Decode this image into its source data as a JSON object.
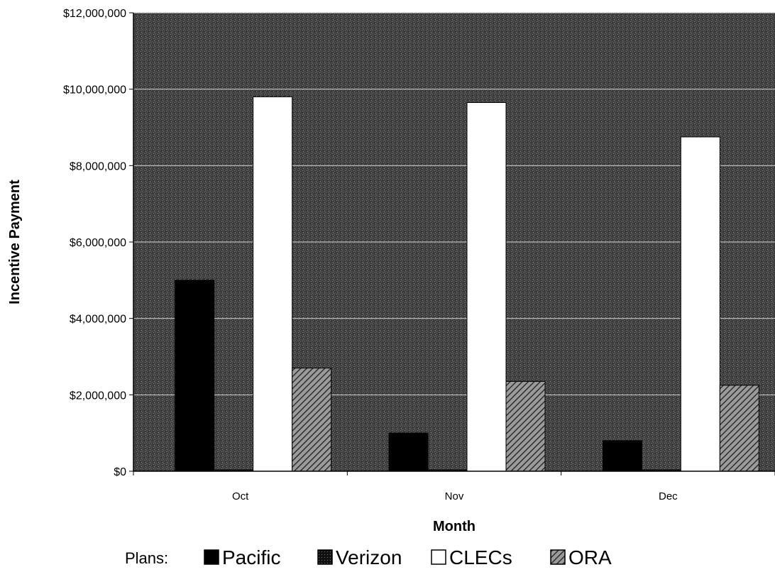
{
  "chart_data": {
    "type": "bar",
    "title": "",
    "xlabel": "Month",
    "ylabel": "Incentive Payment",
    "categories": [
      "Oct",
      "Nov",
      "Dec"
    ],
    "ylim": [
      0,
      12000000
    ],
    "yticks": [
      0,
      2000000,
      4000000,
      6000000,
      8000000,
      10000000,
      12000000
    ],
    "ytick_labels": [
      "$0",
      "$2,000,000",
      "$4,000,000",
      "$6,000,000",
      "$8,000,000",
      "$10,000,000",
      "$12,000,000"
    ],
    "grid": true,
    "legend_position": "bottom",
    "legend_title": "Plans:",
    "series": [
      {
        "name": "Pacific",
        "values": [
          5000000,
          1000000,
          800000
        ],
        "color": "#000000",
        "pattern": "solid"
      },
      {
        "name": "Verizon",
        "values": [
          0,
          0,
          0
        ],
        "color": "#222222",
        "pattern": "dark-dotted"
      },
      {
        "name": "CLECs",
        "values": [
          9800000,
          9650000,
          8750000
        ],
        "color": "#ffffff",
        "pattern": "white"
      },
      {
        "name": "ORA",
        "values": [
          2700000,
          2350000,
          2250000
        ],
        "color": "#666666",
        "pattern": "diagonal-hatch"
      }
    ],
    "plot_background": "#4a4a4a"
  }
}
